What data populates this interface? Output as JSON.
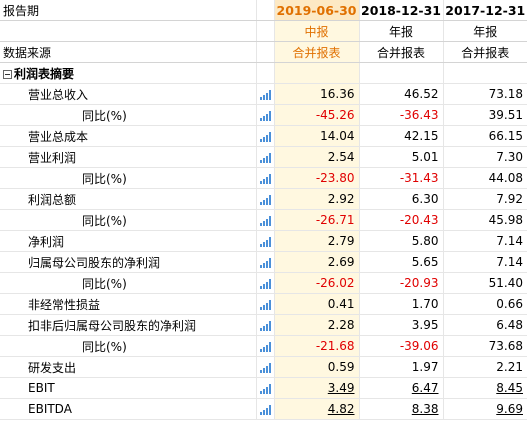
{
  "header": {
    "period_label": "报告期",
    "source_label": "数据来源",
    "periods": [
      "2019-06-30",
      "2018-12-31",
      "2017-12-31"
    ],
    "report_types": [
      "中报",
      "年报",
      "年报"
    ],
    "sources": [
      "合并报表",
      "合并报表",
      "合并报表"
    ]
  },
  "section": {
    "label": "利润表摘要"
  },
  "rows": [
    {
      "label": "营业总收入",
      "level": 1,
      "values": [
        "16.36",
        "46.52",
        "73.18"
      ],
      "neg": [
        false,
        false,
        false
      ],
      "link": false
    },
    {
      "label": "同比(%)",
      "level": 2,
      "values": [
        "-45.26",
        "-36.43",
        "39.51"
      ],
      "neg": [
        true,
        true,
        false
      ],
      "link": false
    },
    {
      "label": "营业总成本",
      "level": 1,
      "values": [
        "14.04",
        "42.15",
        "66.15"
      ],
      "neg": [
        false,
        false,
        false
      ],
      "link": false
    },
    {
      "label": "营业利润",
      "level": 1,
      "values": [
        "2.54",
        "5.01",
        "7.30"
      ],
      "neg": [
        false,
        false,
        false
      ],
      "link": false
    },
    {
      "label": "同比(%)",
      "level": 2,
      "values": [
        "-23.80",
        "-31.43",
        "44.08"
      ],
      "neg": [
        true,
        true,
        false
      ],
      "link": false
    },
    {
      "label": "利润总额",
      "level": 1,
      "values": [
        "2.92",
        "6.30",
        "7.92"
      ],
      "neg": [
        false,
        false,
        false
      ],
      "link": false
    },
    {
      "label": "同比(%)",
      "level": 2,
      "values": [
        "-26.71",
        "-20.43",
        "45.98"
      ],
      "neg": [
        true,
        true,
        false
      ],
      "link": false
    },
    {
      "label": "净利润",
      "level": 1,
      "values": [
        "2.79",
        "5.80",
        "7.14"
      ],
      "neg": [
        false,
        false,
        false
      ],
      "link": false
    },
    {
      "label": "归属母公司股东的净利润",
      "level": 1,
      "values": [
        "2.69",
        "5.65",
        "7.14"
      ],
      "neg": [
        false,
        false,
        false
      ],
      "link": false
    },
    {
      "label": "同比(%)",
      "level": 2,
      "values": [
        "-26.02",
        "-20.93",
        "51.40"
      ],
      "neg": [
        true,
        true,
        false
      ],
      "link": false
    },
    {
      "label": "非经常性损益",
      "level": 1,
      "values": [
        "0.41",
        "1.70",
        "0.66"
      ],
      "neg": [
        false,
        false,
        false
      ],
      "link": false
    },
    {
      "label": "扣非后归属母公司股东的净利润",
      "level": 1,
      "values": [
        "2.28",
        "3.95",
        "6.48"
      ],
      "neg": [
        false,
        false,
        false
      ],
      "link": false
    },
    {
      "label": "同比(%)",
      "level": 2,
      "values": [
        "-21.68",
        "-39.06",
        "73.68"
      ],
      "neg": [
        true,
        true,
        false
      ],
      "link": false
    },
    {
      "label": "研发支出",
      "level": 1,
      "values": [
        "0.59",
        "1.97",
        "2.21"
      ],
      "neg": [
        false,
        false,
        false
      ],
      "link": false
    },
    {
      "label": "EBIT",
      "level": 1,
      "values": [
        "3.49",
        "6.47",
        "8.45"
      ],
      "neg": [
        false,
        false,
        false
      ],
      "link": true
    },
    {
      "label": "EBITDA",
      "level": 1,
      "values": [
        "4.82",
        "8.38",
        "9.69"
      ],
      "neg": [
        false,
        false,
        false
      ],
      "link": true
    }
  ],
  "icons": {
    "chart": "bar-chart-icon",
    "collapse": "collapse-minus-icon"
  },
  "colors": {
    "highlight_header": "#fde9c4",
    "highlight_column": "#fff8e0",
    "accent": "#e07000",
    "negative": "#e00000",
    "icon": "#4a90d9"
  }
}
